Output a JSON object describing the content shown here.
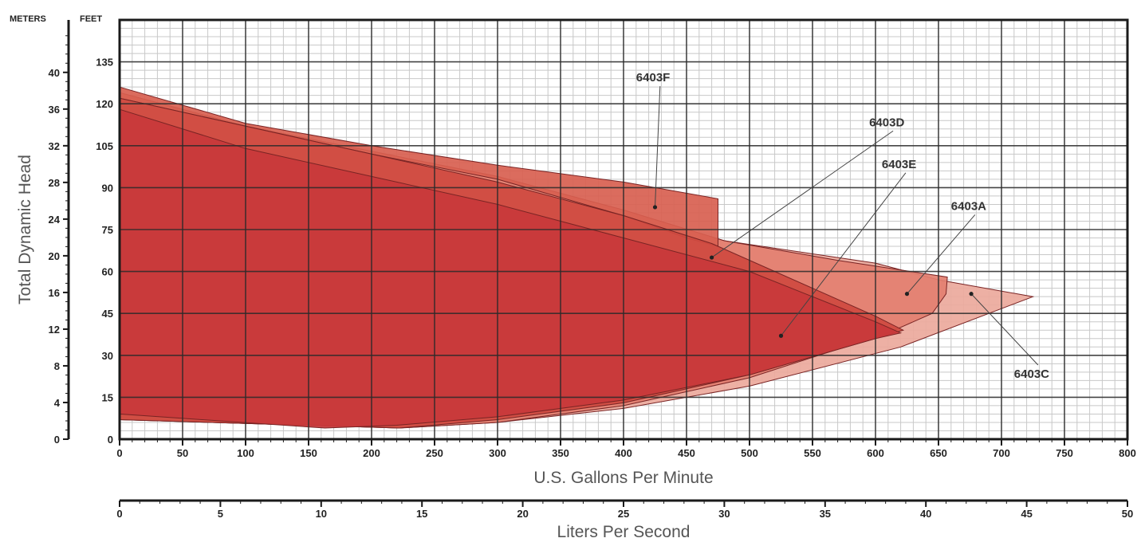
{
  "chart_data": {
    "type": "area",
    "title": "",
    "xlabel": "U.S. Gallons Per Minute",
    "x2label": "Liters Per Second",
    "ylabel": "Total Dynamic Head",
    "ylabel_units_left": "METERS",
    "ylabel_units_right": "FEET",
    "xlim": [
      0,
      800
    ],
    "ylim": [
      0,
      150
    ],
    "x_ticks": [
      0,
      50,
      100,
      150,
      200,
      250,
      300,
      350,
      400,
      450,
      500,
      550,
      600,
      650,
      700,
      750,
      800
    ],
    "y_ticks_feet": [
      0,
      15,
      30,
      45,
      60,
      75,
      90,
      105,
      120,
      135
    ],
    "y_ticks_meters": [
      0,
      4,
      8,
      12,
      16,
      20,
      24,
      28,
      32,
      36,
      40
    ],
    "x2_ticks": [
      0,
      5,
      10,
      15,
      20,
      25,
      30,
      35,
      40,
      45,
      50
    ],
    "x2lim": [
      0,
      50
    ],
    "grid": true,
    "colors": {
      "grid_major": "#2a2a2a",
      "grid_minor": "#c8c8c8",
      "leader": "#444444"
    },
    "series": [
      {
        "name": "6403C",
        "color": "#eba99c",
        "points": [
          [
            0,
            124
          ],
          [
            100,
            112
          ],
          [
            200,
            103
          ],
          [
            300,
            94
          ],
          [
            400,
            82
          ],
          [
            480,
            71
          ],
          [
            600,
            63
          ],
          [
            650,
            57
          ],
          [
            725,
            51
          ],
          [
            620,
            33
          ],
          [
            500,
            19
          ],
          [
            400,
            11
          ],
          [
            300,
            6
          ],
          [
            222,
            4
          ],
          [
            0,
            7
          ]
        ]
      },
      {
        "name": "6403A",
        "color": "#e37f70",
        "points": [
          [
            0,
            124
          ],
          [
            100,
            112
          ],
          [
            200,
            103
          ],
          [
            300,
            94
          ],
          [
            400,
            82
          ],
          [
            480,
            71
          ],
          [
            570,
            64
          ],
          [
            657,
            58
          ],
          [
            656,
            52
          ],
          [
            645,
            45
          ],
          [
            610,
            38
          ],
          [
            500,
            22
          ],
          [
            400,
            12
          ],
          [
            300,
            6
          ],
          [
            222,
            4
          ],
          [
            0,
            7
          ]
        ]
      },
      {
        "name": "6403F",
        "color": "#d86050",
        "points": [
          [
            0,
            126
          ],
          [
            100,
            113
          ],
          [
            200,
            105
          ],
          [
            300,
            98
          ],
          [
            400,
            92
          ],
          [
            475,
            86
          ],
          [
            475,
            69
          ],
          [
            450,
            72
          ],
          [
            400,
            80
          ],
          [
            300,
            93
          ],
          [
            200,
            102
          ],
          [
            100,
            112
          ],
          [
            0,
            122
          ]
        ]
      },
      {
        "name": "6403D",
        "color": "#cf4a40",
        "points": [
          [
            0,
            122
          ],
          [
            100,
            112
          ],
          [
            200,
            102
          ],
          [
            300,
            92
          ],
          [
            400,
            80
          ],
          [
            470,
            70
          ],
          [
            550,
            54
          ],
          [
            600,
            44
          ],
          [
            622,
            39
          ],
          [
            600,
            36
          ],
          [
            500,
            23
          ],
          [
            400,
            13
          ],
          [
            300,
            7
          ],
          [
            222,
            4
          ],
          [
            0,
            7
          ]
        ]
      },
      {
        "name": "6403E",
        "color": "#c8383b",
        "points": [
          [
            0,
            118
          ],
          [
            100,
            104
          ],
          [
            200,
            94
          ],
          [
            300,
            84
          ],
          [
            400,
            72
          ],
          [
            500,
            60
          ],
          [
            600,
            42
          ],
          [
            620,
            38
          ],
          [
            600,
            36
          ],
          [
            500,
            23
          ],
          [
            400,
            14
          ],
          [
            300,
            8
          ],
          [
            220,
            5
          ],
          [
            163,
            4
          ],
          [
            0,
            9
          ]
        ]
      }
    ],
    "annotations": [
      {
        "text": "6403F",
        "x": 410,
        "y": 128,
        "target": [
          425,
          83
        ]
      },
      {
        "text": "6403D",
        "x": 595,
        "y": 112,
        "target": [
          470,
          65
        ]
      },
      {
        "text": "6403E",
        "x": 605,
        "y": 97,
        "target": [
          525,
          37
        ]
      },
      {
        "text": "6403A",
        "x": 660,
        "y": 82,
        "target": [
          625,
          52
        ]
      },
      {
        "text": "6403C",
        "x": 710,
        "y": 22,
        "target": [
          676,
          52
        ]
      }
    ]
  }
}
